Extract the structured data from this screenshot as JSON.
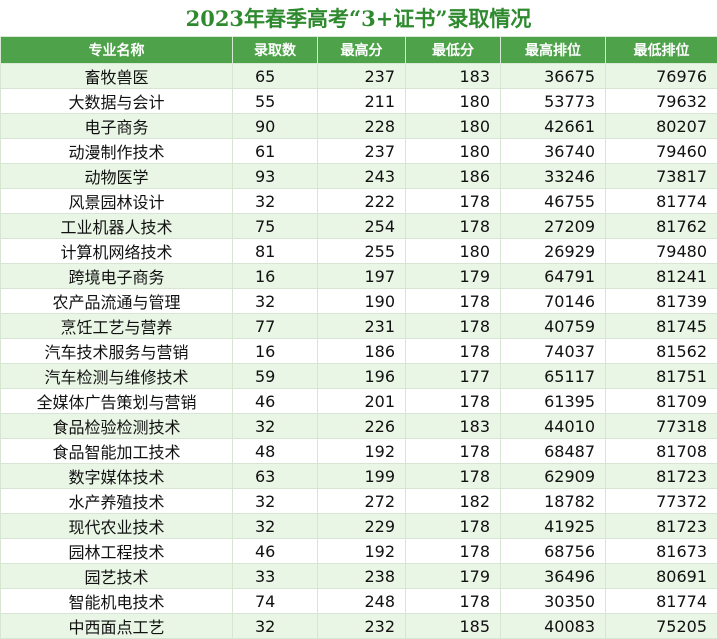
{
  "header": {
    "title": "2023年春季高考“3+证书”录取情况"
  },
  "table": {
    "columns": [
      "专业名称",
      "录取数",
      "最高分",
      "最低分",
      "最高排位",
      "最低排位"
    ],
    "rows": [
      [
        "畜牧兽医",
        65,
        237,
        183,
        36675,
        76976
      ],
      [
        "大数据与会计",
        55,
        211,
        180,
        53773,
        79632
      ],
      [
        "电子商务",
        90,
        228,
        180,
        42661,
        80207
      ],
      [
        "动漫制作技术",
        61,
        237,
        180,
        36740,
        79460
      ],
      [
        "动物医学",
        93,
        243,
        186,
        33246,
        73817
      ],
      [
        "风景园林设计",
        32,
        222,
        178,
        46755,
        81774
      ],
      [
        "工业机器人技术",
        75,
        254,
        178,
        27209,
        81762
      ],
      [
        "计算机网络技术",
        81,
        255,
        180,
        26929,
        79480
      ],
      [
        "跨境电子商务",
        16,
        197,
        179,
        64791,
        81241
      ],
      [
        "农产品流通与管理",
        32,
        190,
        178,
        70146,
        81739
      ],
      [
        "烹饪工艺与营养",
        77,
        231,
        178,
        40759,
        81745
      ],
      [
        "汽车技术服务与营销",
        16,
        186,
        178,
        74037,
        81562
      ],
      [
        "汽车检测与维修技术",
        59,
        196,
        177,
        65117,
        81751
      ],
      [
        "全媒体广告策划与营销",
        46,
        201,
        178,
        61395,
        81709
      ],
      [
        "食品检验检测技术",
        32,
        226,
        183,
        44010,
        77318
      ],
      [
        "食品智能加工技术",
        48,
        192,
        178,
        68487,
        81708
      ],
      [
        "数字媒体技术",
        63,
        199,
        178,
        62909,
        81723
      ],
      [
        "水产养殖技术",
        32,
        272,
        182,
        18782,
        77372
      ],
      [
        "现代农业技术",
        32,
        229,
        178,
        41925,
        81723
      ],
      [
        "园林工程技术",
        46,
        192,
        178,
        68756,
        81673
      ],
      [
        "园艺技术",
        33,
        238,
        179,
        36496,
        80691
      ],
      [
        "智能机电技术",
        74,
        248,
        178,
        30350,
        81774
      ],
      [
        "中西面点工艺",
        32,
        232,
        185,
        40083,
        75205
      ]
    ]
  }
}
